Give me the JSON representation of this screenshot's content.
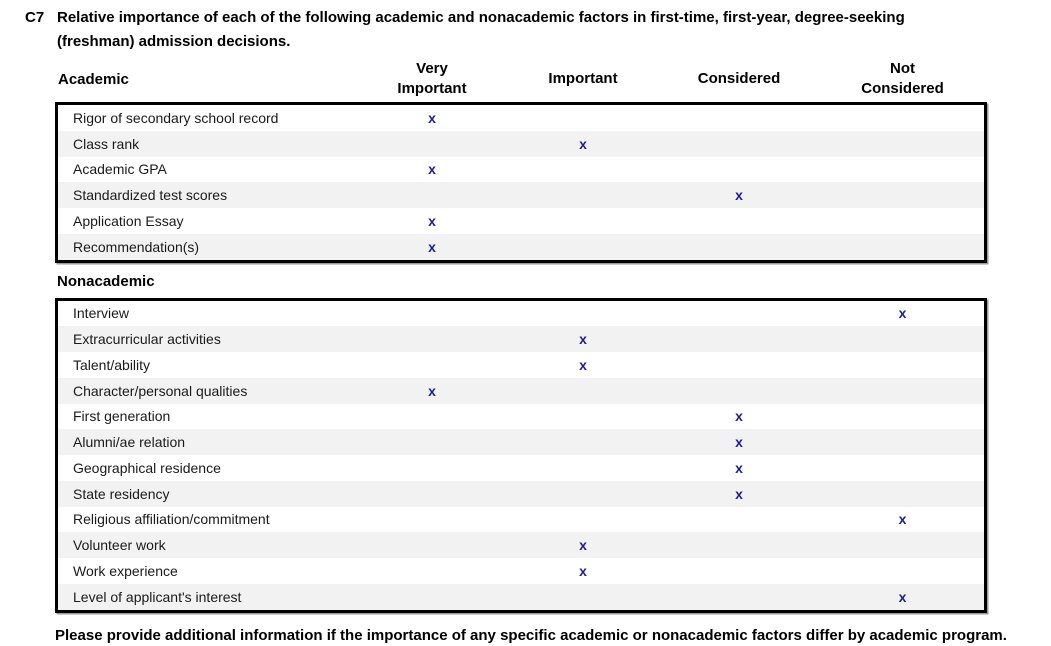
{
  "question": {
    "id": "C7",
    "prompt": "Relative importance of each of the following academic and nonacademic factors in first-time, first-year, degree-seeking (freshman) admission decisions."
  },
  "columns": [
    "Very Important",
    "Important",
    "Considered",
    "Not Considered"
  ],
  "mark_glyph": "x",
  "colors": {
    "mark": "#1c1c96",
    "row_alt": "#f2f2f2",
    "border": "#000000"
  },
  "academic": {
    "label": "Academic",
    "rows": [
      {
        "factor": "Rigor of secondary school record",
        "rating": "Very Important"
      },
      {
        "factor": "Class rank",
        "rating": "Important"
      },
      {
        "factor": "Academic GPA",
        "rating": "Very Important"
      },
      {
        "factor": "Standardized test scores",
        "rating": "Considered"
      },
      {
        "factor": "Application Essay",
        "rating": "Very Important"
      },
      {
        "factor": "Recommendation(s)",
        "rating": "Very Important"
      }
    ]
  },
  "nonacademic": {
    "label": "Nonacademic",
    "rows": [
      {
        "factor": "Interview",
        "rating": "Not Considered"
      },
      {
        "factor": "Extracurricular activities",
        "rating": "Important"
      },
      {
        "factor": "Talent/ability",
        "rating": "Important"
      },
      {
        "factor": "Character/personal qualities",
        "rating": "Very Important"
      },
      {
        "factor": "First generation",
        "rating": "Considered"
      },
      {
        "factor": "Alumni/ae relation",
        "rating": "Considered"
      },
      {
        "factor": "Geographical residence",
        "rating": "Considered"
      },
      {
        "factor": "State residency",
        "rating": "Considered"
      },
      {
        "factor": "Religious affiliation/commitment",
        "rating": "Not Considered"
      },
      {
        "factor": "Volunteer work",
        "rating": "Important"
      },
      {
        "factor": "Work experience",
        "rating": "Important"
      },
      {
        "factor": "Level of applicant's interest",
        "rating": "Not Considered"
      }
    ]
  },
  "footer": "Please provide additional information if the importance of any specific academic or nonacademic factors differ by academic program."
}
